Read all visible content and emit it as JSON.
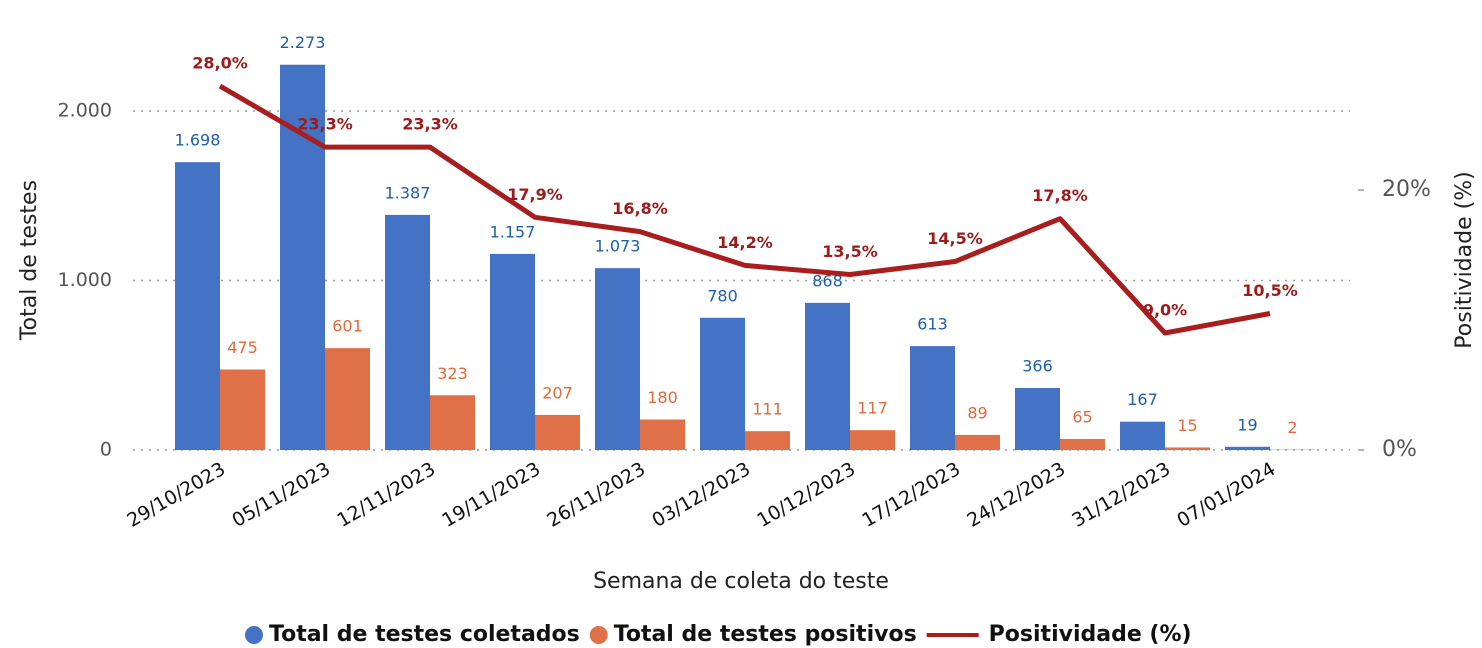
{
  "chart_data": {
    "type": "bar_line",
    "x_label": "Semana de coleta do teste",
    "y_label": "Total de testes",
    "y2_label": "Positividade (%)",
    "categories": [
      "29/10/2023",
      "05/11/2023",
      "12/11/2023",
      "19/11/2023",
      "26/11/2023",
      "03/12/2023",
      "10/12/2023",
      "17/12/2023",
      "24/12/2023",
      "31/12/2023",
      "07/01/2024"
    ],
    "ylim": [
      0,
      2500
    ],
    "yticks": [
      0,
      {
        "value": 1000,
        "label": "1.000"
      },
      {
        "value": 2000,
        "label": "2.000"
      }
    ],
    "y2lim": [
      0,
      32.6
    ],
    "y2ticks": [
      {
        "value": 0,
        "label": "0%"
      },
      {
        "value": 20,
        "label": "20%"
      }
    ],
    "grid": true,
    "legend": "bottom",
    "series": [
      {
        "name": "Total de testes coletados",
        "type": "bar",
        "color": "#4472c4",
        "label_color": "#1f5fa8",
        "values": [
          1698,
          2273,
          1387,
          1157,
          1073,
          780,
          868,
          613,
          366,
          167,
          19
        ],
        "value_labels": [
          "1.698",
          "2.273",
          "1.387",
          "1.157",
          "1.073",
          "780",
          "868",
          "613",
          "366",
          "167",
          "19"
        ]
      },
      {
        "name": "Total de testes positivos",
        "type": "bar",
        "color": "#e07048",
        "label_color": "#e06a3c",
        "values": [
          475,
          601,
          323,
          207,
          180,
          111,
          117,
          89,
          65,
          15,
          2
        ]
      },
      {
        "name": "Positividade (%)",
        "type": "line",
        "axis": "y2",
        "color": "#a81e1e",
        "label_color": "#9b1c1c",
        "values": [
          28.0,
          23.3,
          23.3,
          17.9,
          16.8,
          14.2,
          13.5,
          14.5,
          17.8,
          9.0,
          10.5
        ],
        "value_labels": [
          "28,0%",
          "23,3%",
          "23,3%",
          "17,9%",
          "16,8%",
          "14,2%",
          "13,5%",
          "14,5%",
          "17,8%",
          "9,0%",
          "10,5%"
        ]
      }
    ]
  }
}
